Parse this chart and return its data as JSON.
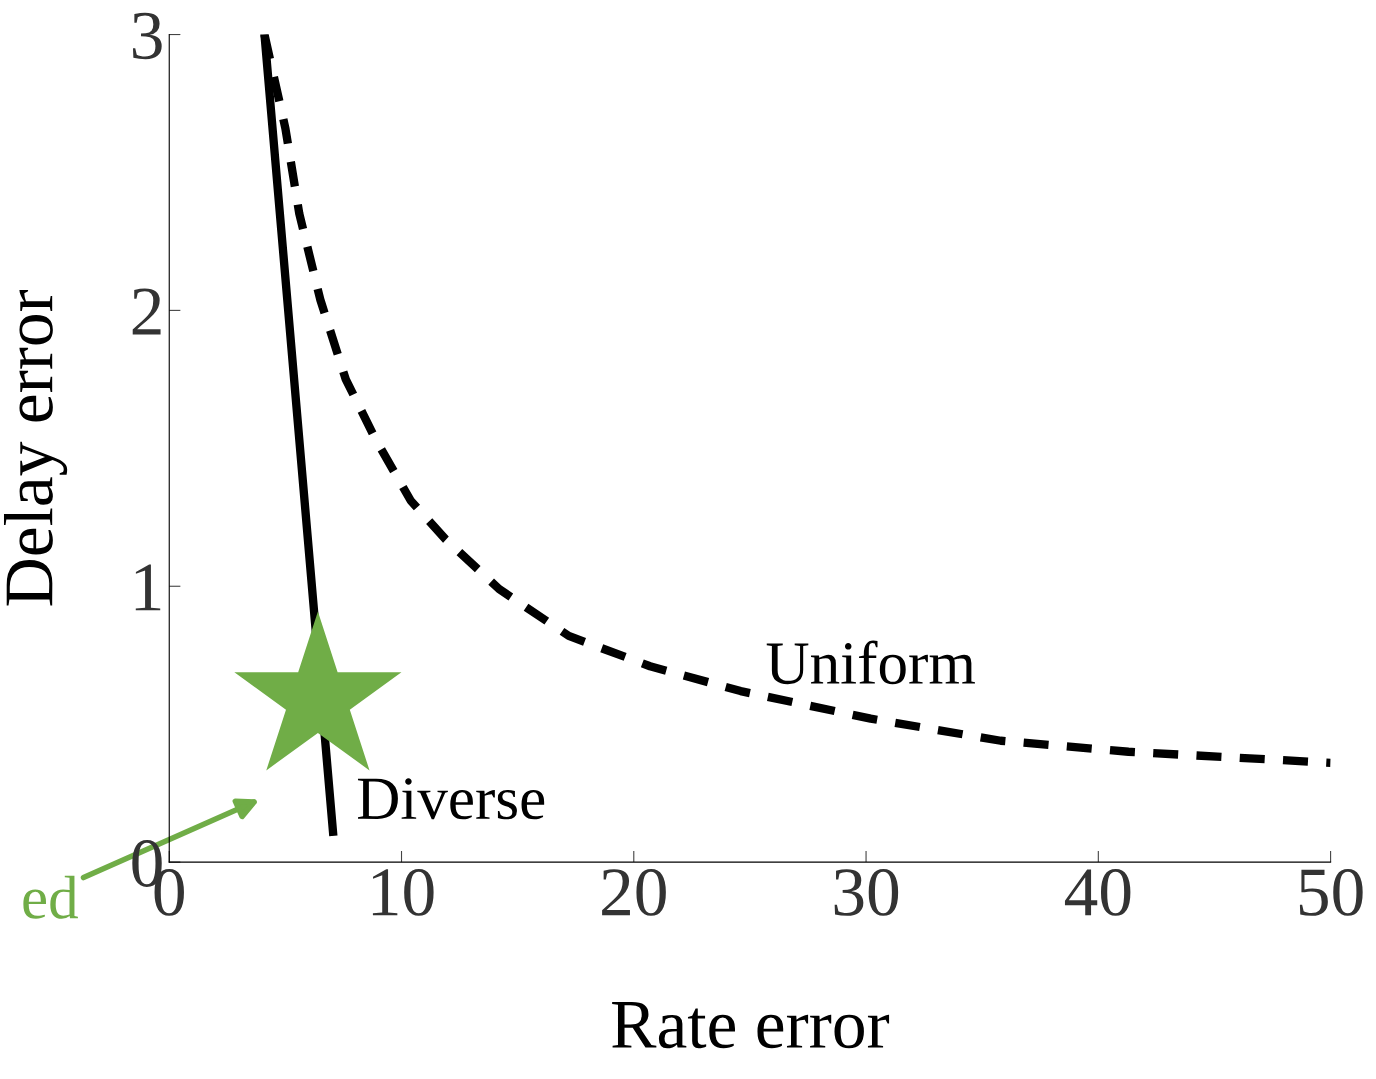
{
  "chart_data": {
    "type": "line",
    "xlabel": "Rate error",
    "ylabel": "Delay error",
    "xlim": [
      0,
      50
    ],
    "ylim": [
      0,
      3
    ],
    "xticks": [
      0,
      10,
      20,
      30,
      40,
      50
    ],
    "yticks": [
      0,
      1,
      2,
      3
    ],
    "grid": false,
    "legend": false,
    "series": [
      {
        "name": "Diverse",
        "color": "#000000",
        "line_style": "solid",
        "x": [
          4.1,
          7.05
        ],
        "values": [
          3.0,
          0.11
        ]
      },
      {
        "name": "Uniform",
        "color": "#000000",
        "line_style": "dashed",
        "x": [
          4.1,
          5.0,
          5.6,
          6.5,
          7.6,
          8.9,
          10.4,
          11.9,
          14.2,
          17.2,
          20.7,
          24.6,
          30.2,
          35.8,
          41.3,
          50
        ],
        "values": [
          3.0,
          2.66,
          2.35,
          2.04,
          1.75,
          1.53,
          1.31,
          1.17,
          0.99,
          0.82,
          0.71,
          0.62,
          0.52,
          0.44,
          0.4,
          0.36
        ]
      },
      {
        "type": "scatter",
        "marker": "star",
        "color": "#70ad47",
        "x": [
          6.4
        ],
        "values": [
          0.59
        ]
      }
    ],
    "annotations": [
      "ed"
    ]
  }
}
